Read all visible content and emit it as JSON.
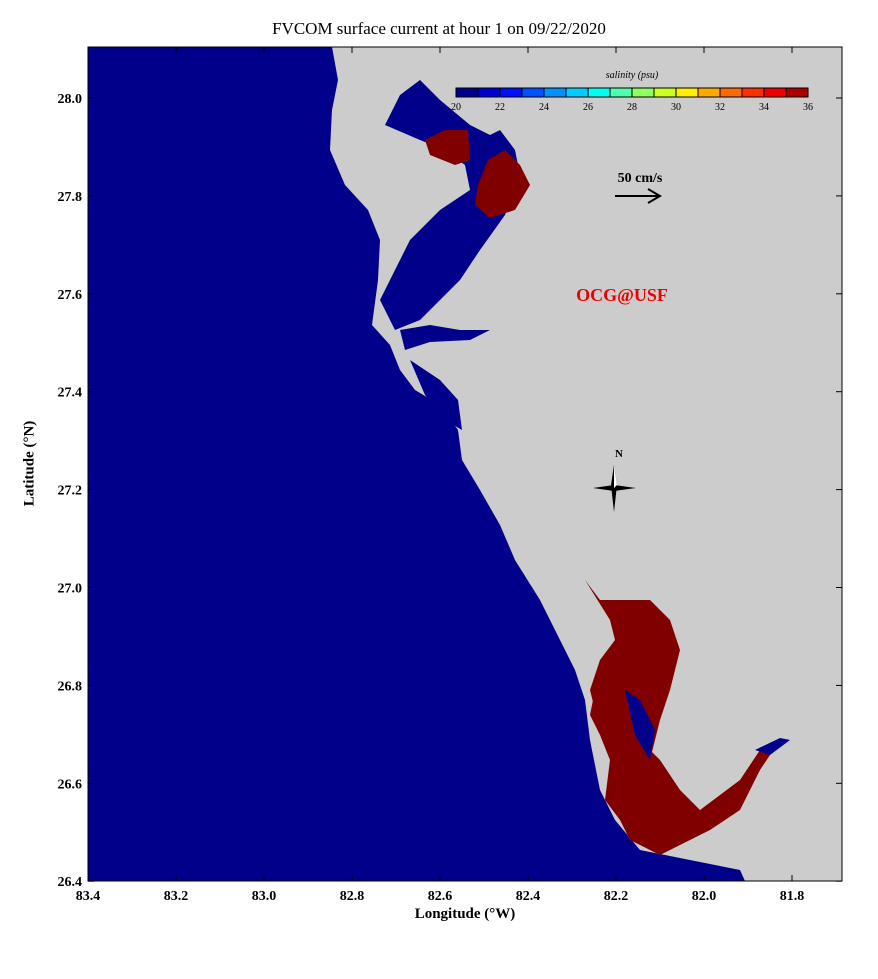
{
  "title": "FVCOM surface current at hour 1 on 09/22/2020",
  "xlabel": "Longitude (°W)",
  "ylabel": "Latitude (°N)",
  "xticks": [
    "83.4",
    "83.2",
    "83.0",
    "82.8",
    "82.6",
    "82.4",
    "82.2",
    "82.0",
    "81.8"
  ],
  "yticks": [
    "28.0",
    "27.8",
    "27.6",
    "27.4",
    "27.2",
    "27.0",
    "26.8",
    "26.6",
    "26.4"
  ],
  "colorbar": {
    "title": "salinity (psu)",
    "labels": [
      "20",
      "22",
      "24",
      "26",
      "28",
      "30",
      "32",
      "34",
      "36"
    ],
    "colors": [
      "#00008b",
      "#0000cd",
      "#0010ff",
      "#0050ff",
      "#0090ff",
      "#00ccff",
      "#00ffee",
      "#50ffaa",
      "#90ff60",
      "#ccff20",
      "#ffee00",
      "#ffaa00",
      "#ff6a00",
      "#ff3000",
      "#ee0000",
      "#aa0000"
    ]
  },
  "scale_label": "50 cm/s",
  "watermark": "OCG@USF",
  "north_label": "N",
  "colors": {
    "ocean": "#00008b",
    "land": "#cccccc",
    "high_salinity": "#800000",
    "watermark": "#ee0000"
  }
}
